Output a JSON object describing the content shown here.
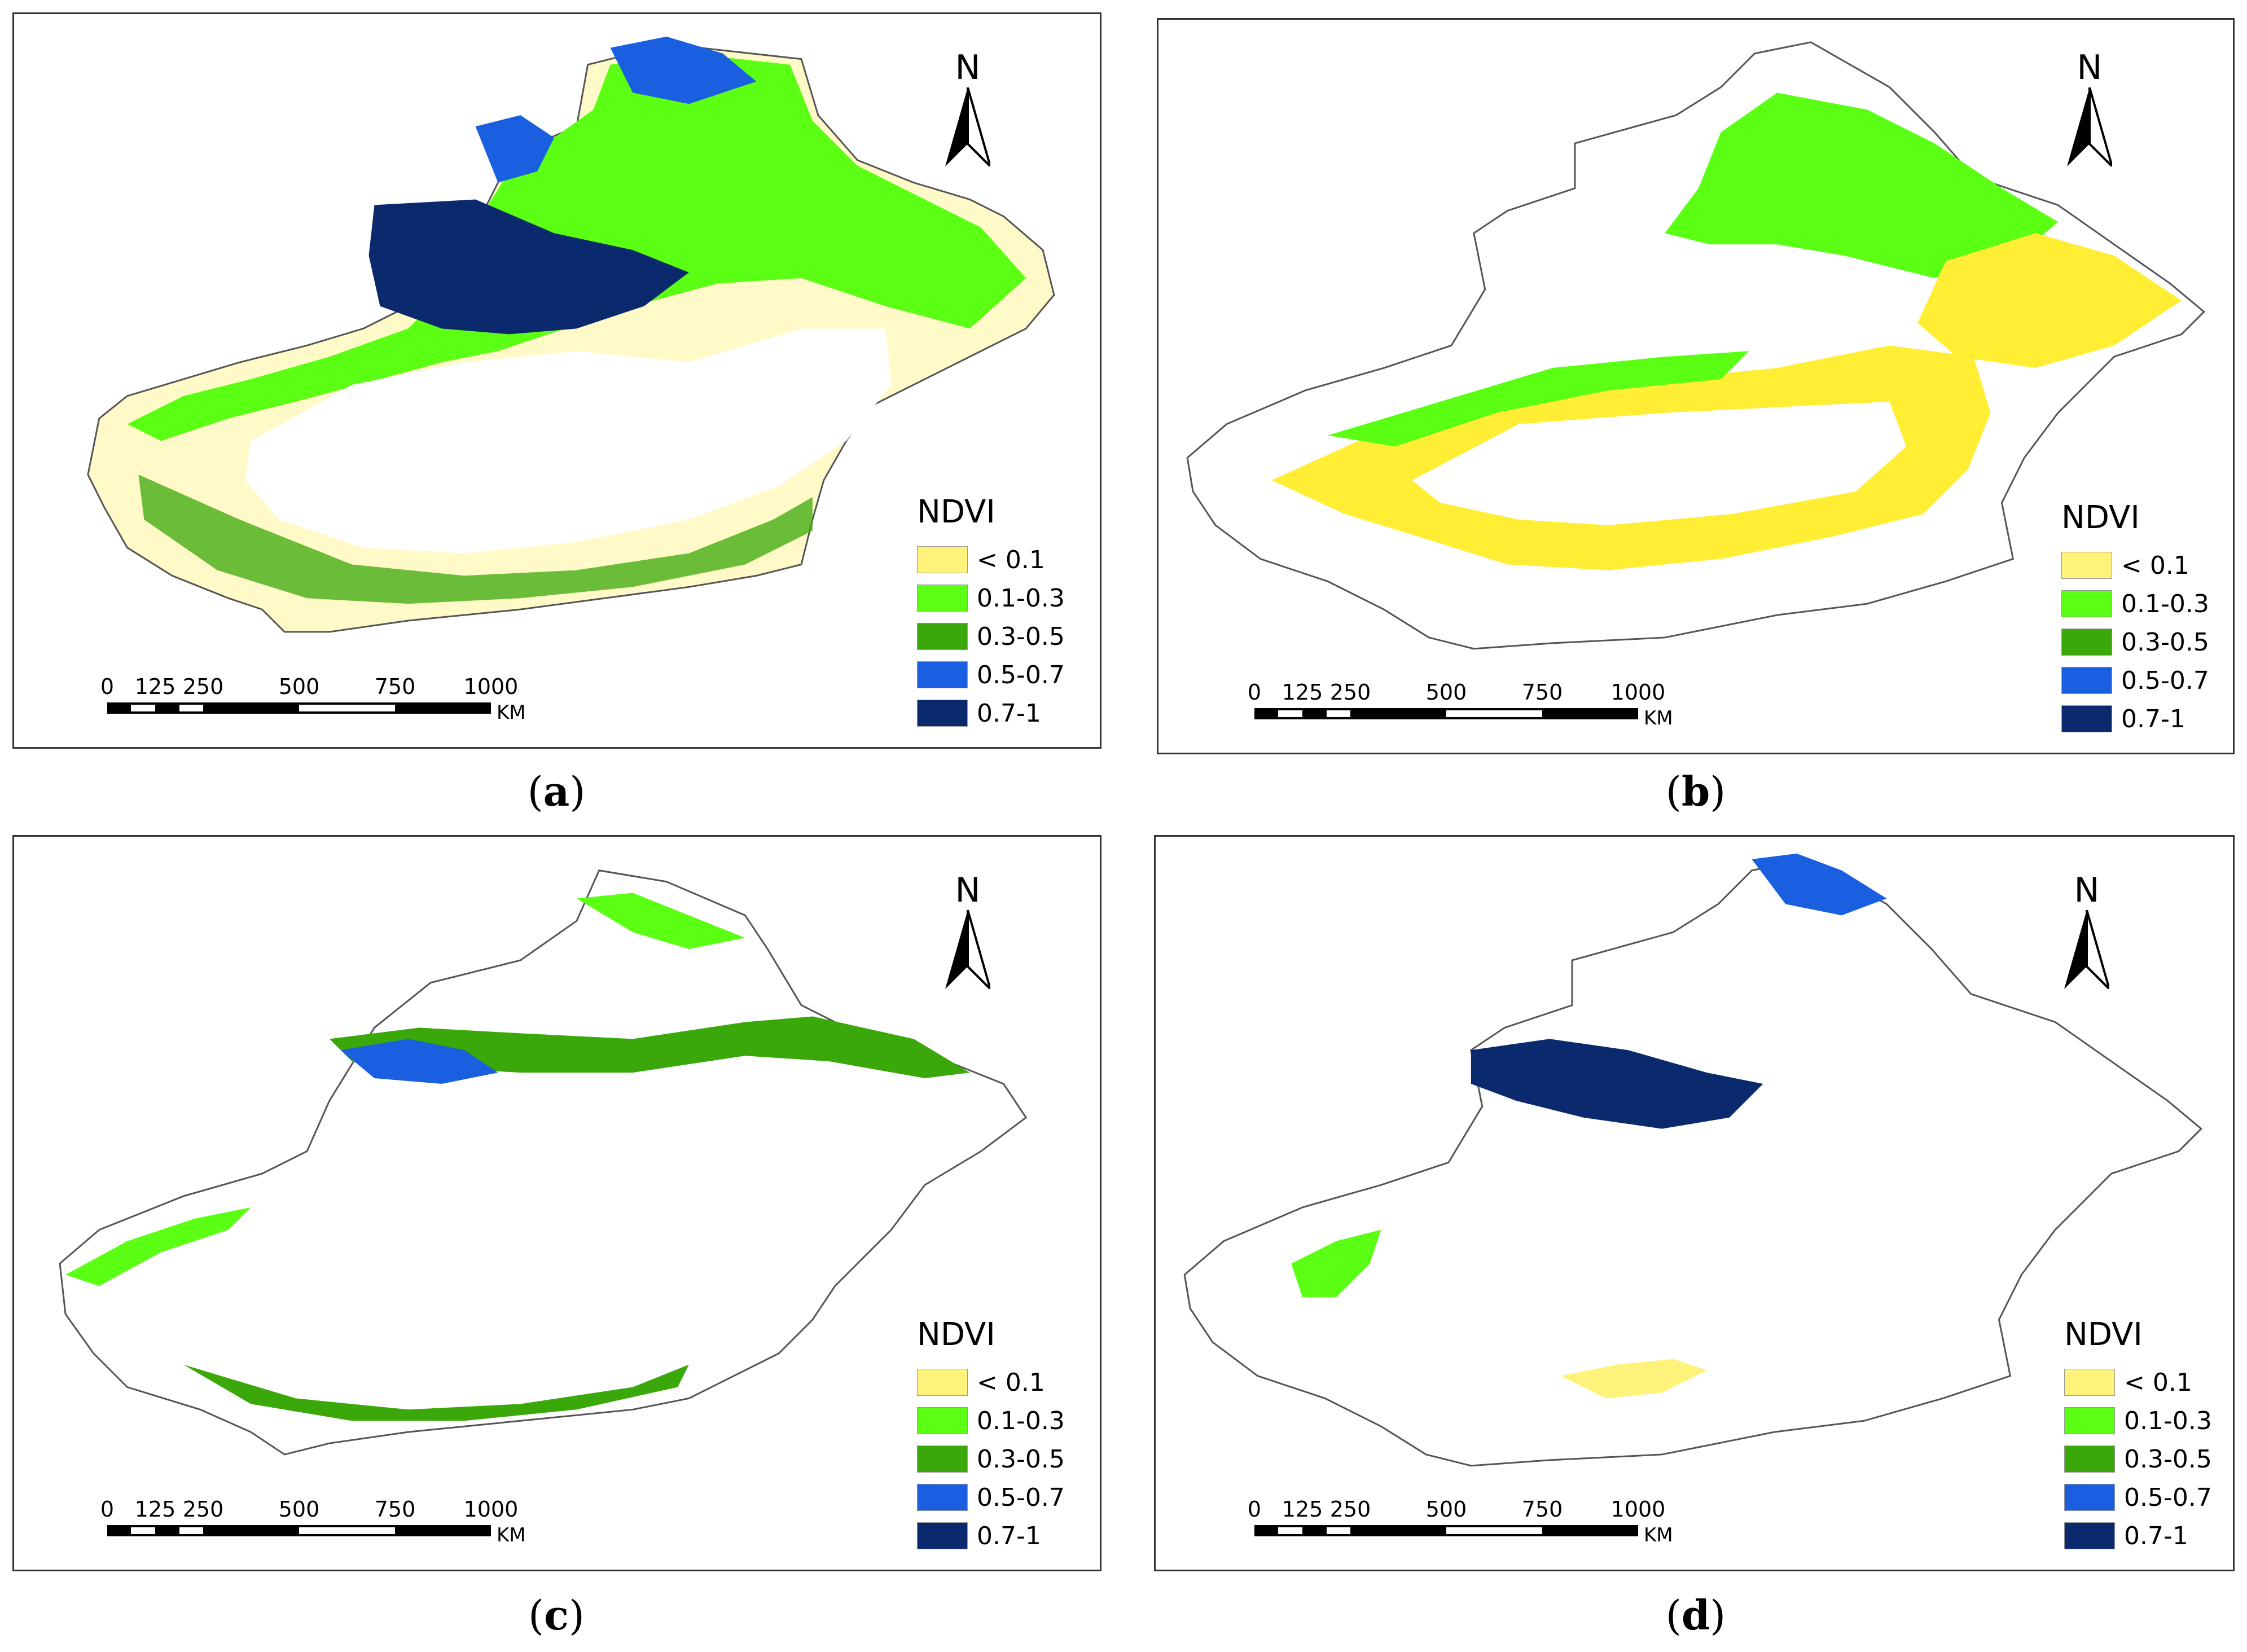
{
  "panels": [
    {
      "id": "a",
      "caption": "a"
    },
    {
      "id": "b",
      "caption": "b"
    },
    {
      "id": "c",
      "caption": "c"
    },
    {
      "id": "d",
      "caption": "d"
    }
  ],
  "north_label": "N",
  "legend": {
    "title": "NDVI",
    "items": [
      {
        "label": "< 0.1",
        "color": "#fff27a"
      },
      {
        "label": "0.1-0.3",
        "color": "#5aff14"
      },
      {
        "label": "0.3-0.5",
        "color": "#3aa80a"
      },
      {
        "label": "0.5-0.7",
        "color": "#1a5fe0"
      },
      {
        "label": "0.7-1",
        "color": "#0b2a6e"
      }
    ]
  },
  "scale": {
    "ticks": [
      "0",
      "125",
      "250",
      "500",
      "750",
      "1000"
    ],
    "unit": "KM"
  }
}
